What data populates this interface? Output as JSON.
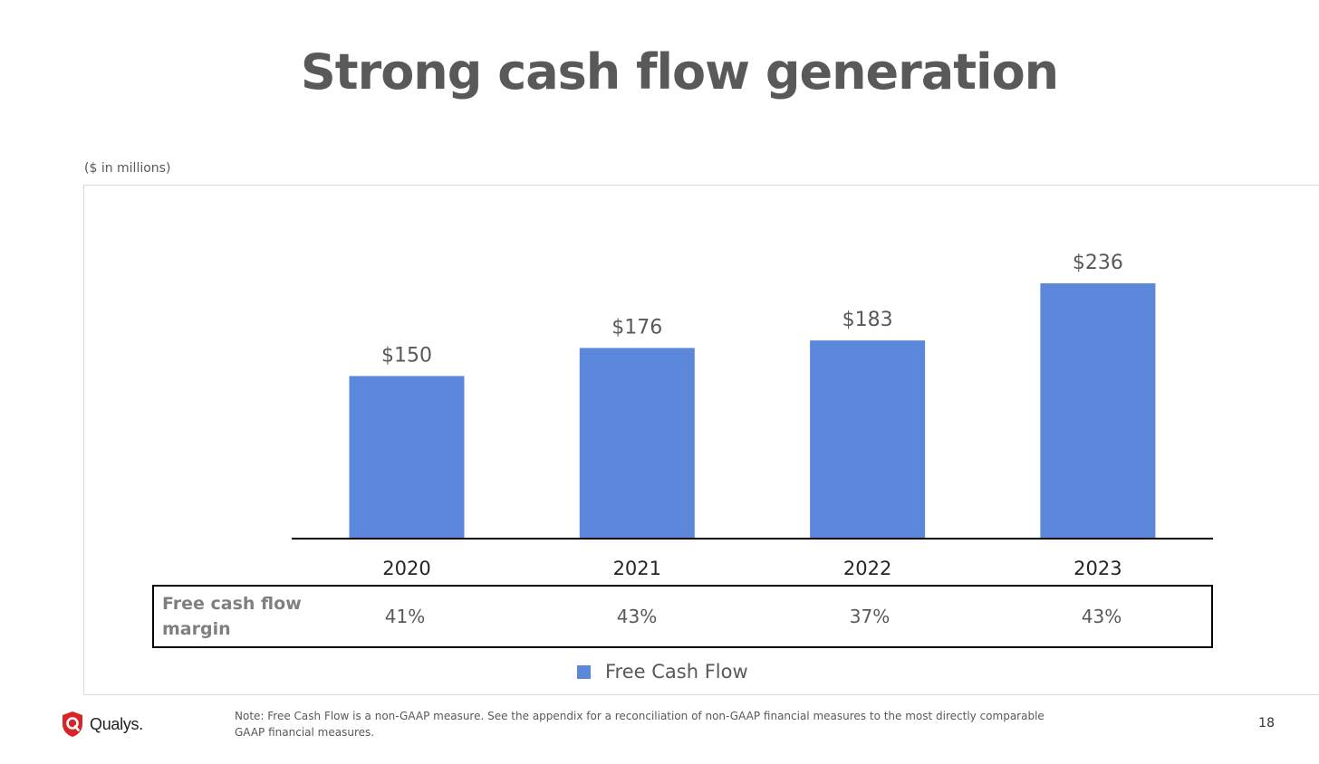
{
  "slide": {
    "title": "Strong cash flow generation",
    "units_note": "($ in millions)",
    "note": "Note: Free Cash Flow is a non-GAAP measure. See the appendix for a reconciliation of non-GAAP financial measures to the most directly comparable GAAP financial measures.",
    "page_number": "18",
    "logo_text": "Qualys."
  },
  "margin_row": {
    "label": "Free cash flow margin",
    "values": [
      "41%",
      "43%",
      "37%",
      "43%"
    ]
  },
  "colors": {
    "bar": "#5b88db",
    "text": "#595959",
    "logo_red": "#d6252a"
  },
  "chart_data": {
    "type": "bar",
    "title": "Strong cash flow generation",
    "categories": [
      "2020",
      "2021",
      "2022",
      "2023"
    ],
    "series": [
      {
        "name": "Free Cash Flow",
        "values": [
          150,
          176,
          183,
          236
        ],
        "labels": [
          "$150",
          "$176",
          "$183",
          "$236"
        ]
      }
    ],
    "ylim": [
      0,
      236
    ],
    "grid": false,
    "legend": "bottom"
  }
}
